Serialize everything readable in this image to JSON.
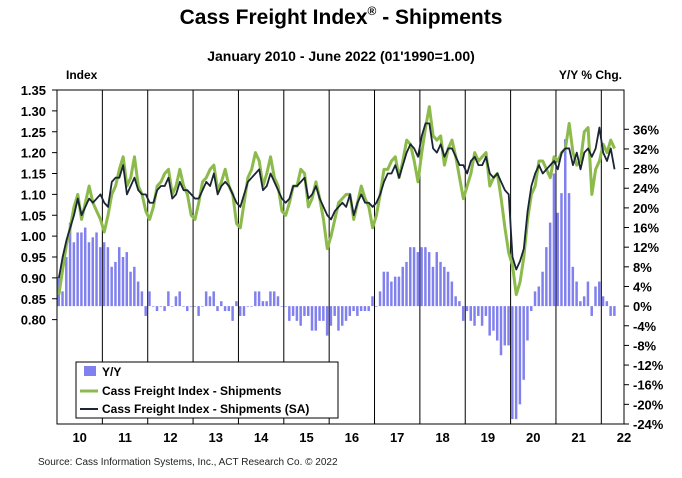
{
  "header": {
    "title_main": "Cass Freight Index",
    "title_reg": "®",
    "title_tail": " - Shipments",
    "subtitle": "January 2010 - June 2022 (01'1990=1.00)"
  },
  "source": "Source:  Cass Information  Systems, Inc., ACT Research Co. © 2022",
  "chart_data": {
    "type": "line",
    "left_axis": {
      "label": "Index",
      "ylim": [
        0.55,
        1.35
      ],
      "ticks": [
        "1.35",
        "1.30",
        "1.25",
        "1.20",
        "1.15",
        "1.10",
        "1.05",
        "1.00",
        "0.95",
        "0.90",
        "0.85",
        "0.80"
      ],
      "tick_values": [
        1.35,
        1.3,
        1.25,
        1.2,
        1.15,
        1.1,
        1.05,
        1.0,
        0.95,
        0.9,
        0.85,
        0.8
      ]
    },
    "right_axis": {
      "label": "Y/Y % Chg.",
      "ylim": [
        -24,
        44
      ],
      "ticks": [
        "36%",
        "32%",
        "28%",
        "24%",
        "20%",
        "16%",
        "12%",
        "8%",
        "4%",
        "0%",
        "-4%",
        "-8%",
        "-12%",
        "-16%",
        "-20%",
        "-24%"
      ],
      "tick_values": [
        36,
        32,
        28,
        24,
        20,
        16,
        12,
        8,
        4,
        0,
        -4,
        -8,
        -12,
        -16,
        -20,
        -24
      ]
    },
    "x_axis": {
      "categories": [
        "10",
        "11",
        "12",
        "13",
        "14",
        "15",
        "16",
        "17",
        "18",
        "19",
        "20",
        "21",
        "22"
      ],
      "start": "2010-01",
      "months": 150
    },
    "colors": {
      "bars": "#8080ee",
      "nsa_line": "#8cbb4b",
      "sa_line": "#1a2535"
    },
    "legend": {
      "position": "bottom-left",
      "entries": [
        {
          "name": "Y/Y",
          "style": "bar"
        },
        {
          "name": "Cass Freight Index - Shipments",
          "style": "line-green"
        },
        {
          "name": "Cass Freight Index - Shipments (SA)",
          "style": "line-dark"
        }
      ]
    },
    "series": [
      {
        "name": "Cass Freight Index - Shipments",
        "axis": "left",
        "values": [
          0.86,
          0.92,
          0.98,
          1.02,
          1.07,
          1.1,
          1.04,
          1.08,
          1.12,
          1.08,
          1.06,
          1.04,
          1.01,
          1.05,
          1.1,
          1.12,
          1.16,
          1.19,
          1.12,
          1.14,
          1.19,
          1.12,
          1.1,
          1.06,
          1.04,
          1.07,
          1.12,
          1.13,
          1.15,
          1.16,
          1.1,
          1.12,
          1.16,
          1.12,
          1.1,
          1.05,
          1.04,
          1.08,
          1.13,
          1.14,
          1.16,
          1.17,
          1.11,
          1.13,
          1.16,
          1.12,
          1.1,
          1.03,
          1.02,
          1.08,
          1.14,
          1.16,
          1.2,
          1.18,
          1.12,
          1.15,
          1.19,
          1.14,
          1.12,
          1.06,
          1.05,
          1.08,
          1.12,
          1.12,
          1.16,
          1.15,
          1.07,
          1.09,
          1.13,
          1.09,
          1.04,
          0.97,
          1.0,
          1.04,
          1.08,
          1.09,
          1.1,
          1.1,
          1.04,
          1.08,
          1.12,
          1.09,
          1.07,
          1.02,
          1.05,
          1.1,
          1.16,
          1.16,
          1.18,
          1.19,
          1.14,
          1.18,
          1.23,
          1.22,
          1.18,
          1.13,
          1.2,
          1.26,
          1.31,
          1.24,
          1.23,
          1.24,
          1.17,
          1.21,
          1.23,
          1.19,
          1.14,
          1.09,
          1.12,
          1.15,
          1.2,
          1.18,
          1.19,
          1.2,
          1.12,
          1.14,
          1.15,
          1.09,
          1.02,
          0.96,
          0.93,
          0.86,
          0.89,
          0.95,
          1.04,
          1.1,
          1.12,
          1.18,
          1.18,
          1.16,
          1.14,
          1.19,
          1.18,
          1.2,
          1.21,
          1.27,
          1.2,
          1.17,
          1.18,
          1.25,
          1.26,
          1.1,
          1.16,
          1.18,
          1.22,
          1.2,
          1.23,
          1.21
        ]
      },
      {
        "name": "Cass Freight Index - Shipments (SA)",
        "axis": "left",
        "values": [
          0.9,
          0.95,
          0.99,
          1.02,
          1.05,
          1.09,
          1.05,
          1.07,
          1.09,
          1.08,
          1.09,
          1.1,
          1.08,
          1.07,
          1.13,
          1.14,
          1.14,
          1.17,
          1.1,
          1.12,
          1.14,
          1.11,
          1.1,
          1.1,
          1.08,
          1.08,
          1.11,
          1.12,
          1.12,
          1.14,
          1.09,
          1.1,
          1.13,
          1.11,
          1.11,
          1.1,
          1.09,
          1.09,
          1.11,
          1.13,
          1.12,
          1.15,
          1.1,
          1.12,
          1.13,
          1.12,
          1.1,
          1.08,
          1.07,
          1.1,
          1.13,
          1.14,
          1.15,
          1.16,
          1.11,
          1.12,
          1.15,
          1.13,
          1.11,
          1.09,
          1.08,
          1.09,
          1.12,
          1.12,
          1.13,
          1.14,
          1.09,
          1.1,
          1.12,
          1.09,
          1.07,
          1.05,
          1.04,
          1.06,
          1.07,
          1.08,
          1.07,
          1.1,
          1.05,
          1.08,
          1.1,
          1.08,
          1.08,
          1.07,
          1.08,
          1.1,
          1.13,
          1.15,
          1.15,
          1.17,
          1.14,
          1.17,
          1.2,
          1.22,
          1.21,
          1.19,
          1.24,
          1.27,
          1.27,
          1.21,
          1.2,
          1.22,
          1.19,
          1.21,
          1.21,
          1.19,
          1.17,
          1.17,
          1.15,
          1.18,
          1.19,
          1.17,
          1.17,
          1.19,
          1.15,
          1.14,
          1.15,
          1.13,
          1.11,
          1.1,
          0.95,
          0.92,
          0.94,
          0.97,
          1.06,
          1.12,
          1.15,
          1.17,
          1.15,
          1.16,
          1.17,
          1.18,
          1.16,
          1.2,
          1.21,
          1.21,
          1.17,
          1.2,
          1.16,
          1.2,
          1.21,
          1.19,
          1.21,
          1.26,
          1.2,
          1.18,
          1.21,
          1.16
        ]
      },
      {
        "name": "Y/Y",
        "axis": "right",
        "values": [
          6,
          3,
          10,
          17,
          13,
          15,
          15,
          16,
          13,
          14,
          15,
          12,
          13,
          12,
          8,
          9,
          12,
          10,
          11,
          7,
          8,
          5,
          3,
          -2,
          3,
          0,
          -1,
          0,
          -1,
          3,
          0,
          2,
          3,
          0,
          -1,
          0,
          0,
          -2,
          0,
          3,
          2,
          3,
          -1,
          1,
          -1,
          -1,
          -3,
          1,
          -2,
          -2,
          0,
          0,
          3,
          3,
          1,
          1,
          3,
          3,
          2,
          0,
          0,
          -3,
          -2,
          -3,
          -4,
          -2,
          -2,
          -5,
          -5,
          -3,
          -3,
          -6,
          -4,
          -2,
          -5,
          -4,
          -3,
          -2,
          -1,
          -2,
          -1,
          -1,
          -1,
          2,
          0,
          3,
          7,
          7,
          5,
          6,
          6,
          8,
          9,
          12,
          12,
          11,
          12,
          12,
          11,
          8,
          11,
          9,
          8,
          7,
          5,
          2,
          1,
          -3,
          -1,
          -3,
          -4,
          -2,
          -4,
          -2,
          -6,
          -5,
          -7,
          -10,
          -8,
          -8,
          -23,
          -23,
          -20,
          -15,
          -7,
          -1,
          3,
          4,
          7,
          12,
          17,
          27,
          19,
          23,
          34,
          23,
          8,
          5,
          1,
          2,
          5,
          -2,
          4,
          5,
          2,
          1,
          -2,
          -2
        ]
      }
    ]
  }
}
